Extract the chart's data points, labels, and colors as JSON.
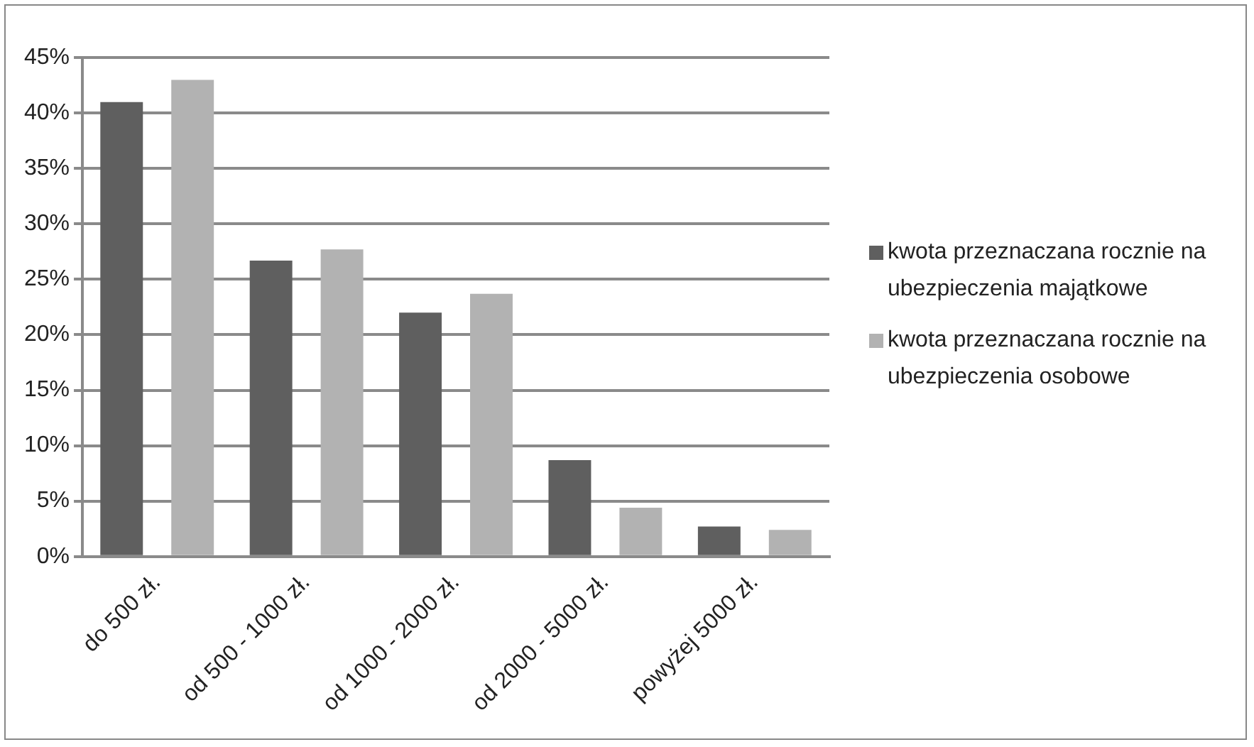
{
  "chart_data": {
    "type": "bar",
    "categories": [
      "do 500 zł.",
      "od 500 - 1000 zł.",
      "od 1000 - 2000 zł.",
      "od 2000 - 5000 zł.",
      "powyżej 5000 zł."
    ],
    "series": [
      {
        "name": "kwota przeznaczana rocznie na ubezpieczenia majątkowe",
        "color": "#5f5f5f",
        "values": [
          41,
          26.7,
          22,
          8.7,
          2.7
        ]
      },
      {
        "name": "kwota przeznaczana rocznie na ubezpieczenia osobowe",
        "color": "#b2b2b2",
        "values": [
          43,
          27.7,
          23.7,
          4.4,
          2.4
        ]
      }
    ],
    "ylim": [
      0,
      45
    ],
    "yticks": [
      {
        "value": 0,
        "label": "0%"
      },
      {
        "value": 5,
        "label": "5%"
      },
      {
        "value": 10,
        "label": "10%"
      },
      {
        "value": 15,
        "label": "15%"
      },
      {
        "value": 20,
        "label": "20%"
      },
      {
        "value": 25,
        "label": "25%"
      },
      {
        "value": 30,
        "label": "30%"
      },
      {
        "value": 35,
        "label": "35%"
      },
      {
        "value": 40,
        "label": "40%"
      },
      {
        "value": 45,
        "label": "45%"
      }
    ],
    "grid": "y",
    "legend": "right"
  }
}
